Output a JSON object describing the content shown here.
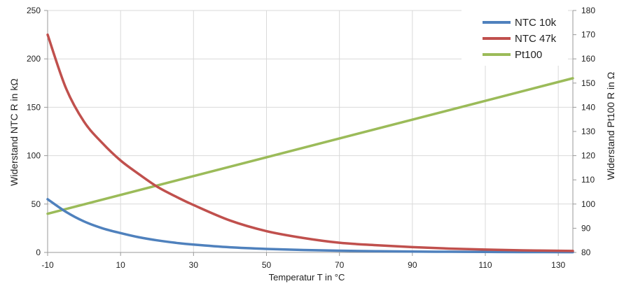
{
  "chart_data": {
    "type": "line",
    "title": "",
    "xlabel": "Temperatur T in °C",
    "ylabel_left": "Widerstand NTC R in kΩ",
    "ylabel_right": "Widerstand Pt100 R in Ω",
    "xlim": [
      -10,
      134
    ],
    "ylim_left": [
      0,
      250
    ],
    "ylim_right": [
      80,
      180
    ],
    "x_ticks": [
      -10,
      10,
      30,
      50,
      70,
      90,
      110,
      130
    ],
    "y_left_ticks": [
      0,
      50,
      100,
      150,
      200,
      250
    ],
    "y_right_ticks": [
      80,
      90,
      100,
      110,
      120,
      130,
      140,
      150,
      160,
      170,
      180
    ],
    "grid": true,
    "legend_position": "top-right",
    "colors": {
      "NTC 10k": "#4f81bd",
      "NTC 47k": "#c0504d",
      "Pt100": "#9bbb59"
    },
    "series": [
      {
        "name": "NTC 10k",
        "axis": "left",
        "x": [
          -10,
          -5,
          0,
          5,
          10,
          15,
          20,
          25,
          30,
          40,
          50,
          60,
          70,
          80,
          90,
          100,
          110,
          120,
          134
        ],
        "y": [
          55,
          42,
          32,
          25,
          20,
          15.7,
          12.5,
          10,
          8.1,
          5.3,
          3.6,
          2.5,
          1.8,
          1.3,
          0.9,
          0.7,
          0.5,
          0.4,
          0.3
        ]
      },
      {
        "name": "NTC 47k",
        "axis": "left",
        "x": [
          -10,
          -5,
          0,
          5,
          10,
          15,
          20,
          25,
          30,
          40,
          50,
          60,
          70,
          80,
          90,
          100,
          110,
          120,
          134
        ],
        "y": [
          225,
          170,
          135,
          113,
          95,
          81,
          68,
          58,
          49,
          33,
          22,
          15,
          10,
          7.5,
          5.5,
          4,
          3,
          2.2,
          1.5
        ]
      },
      {
        "name": "Pt100",
        "axis": "right",
        "x": [
          -10,
          134
        ],
        "y": [
          96,
          152
        ]
      }
    ]
  }
}
